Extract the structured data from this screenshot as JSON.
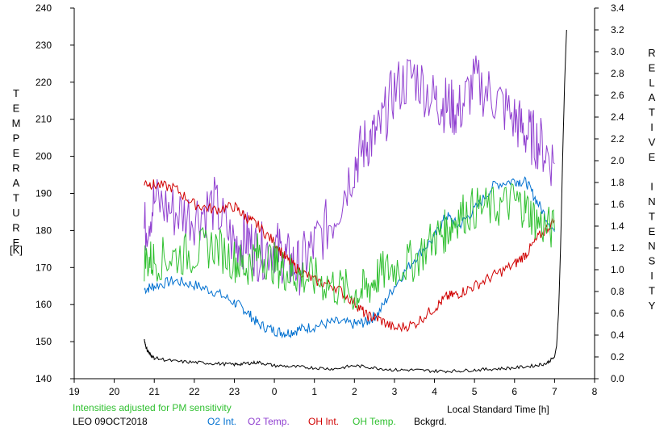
{
  "chart_data": {
    "type": "line",
    "title": "",
    "xlabel": "Local Standard Time [h]",
    "ylabel_left": "TEMPERATURE",
    "ylabel_left_unit": "[K]",
    "ylabel_right": "RELATIVE INTENSITY",
    "xlim": [
      19,
      32
    ],
    "x_tick_values": [
      19,
      20,
      21,
      22,
      23,
      24,
      25,
      26,
      27,
      28,
      29,
      30,
      31,
      32
    ],
    "x_tick_labels": [
      "19",
      "20",
      "21",
      "22",
      "23",
      "0",
      "1",
      "2",
      "3",
      "4",
      "5",
      "6",
      "7",
      "8"
    ],
    "ylim_left": [
      140,
      240
    ],
    "y_left_ticks": [
      "140",
      "150",
      "160",
      "170",
      "180",
      "190",
      "200",
      "210",
      "220",
      "230",
      "240"
    ],
    "ylim_right": [
      0.0,
      3.4
    ],
    "y_right_ticks": [
      "0.0",
      "0.2",
      "0.4",
      "0.6",
      "0.8",
      "1.0",
      "1.2",
      "1.4",
      "1.6",
      "1.8",
      "2.0",
      "2.2",
      "2.4",
      "2.6",
      "2.8",
      "3.0",
      "3.2",
      "3.4"
    ],
    "note": "Intensities adjusted for PM sensitivity",
    "site_date": "LEO 09OCT2018",
    "legend_placement": "bottom",
    "grid": false,
    "series": [
      {
        "name": "O2 Int.",
        "color": "#0070d0",
        "axis": "right",
        "x": [
          20.75,
          21.0,
          21.5,
          22.0,
          22.5,
          23.0,
          23.3,
          23.6,
          24.0,
          24.3,
          24.6,
          25.0,
          25.5,
          26.0,
          26.3,
          26.6,
          27.0,
          27.5,
          28.0,
          28.3,
          28.6,
          29.0,
          29.5,
          30.0,
          30.3,
          30.6,
          31.0
        ],
        "values": [
          0.82,
          0.85,
          0.9,
          0.86,
          0.8,
          0.7,
          0.62,
          0.5,
          0.44,
          0.42,
          0.45,
          0.48,
          0.52,
          0.5,
          0.52,
          0.6,
          0.85,
          1.1,
          1.3,
          1.5,
          1.4,
          1.55,
          1.78,
          1.82,
          1.8,
          1.6,
          1.35
        ]
      },
      {
        "name": "O2 Temp.",
        "color": "#9040d0",
        "axis": "left",
        "x": [
          20.75,
          21.0,
          21.5,
          22.0,
          22.5,
          23.0,
          23.3,
          23.6,
          24.0,
          24.3,
          24.6,
          25.0,
          25.5,
          26.0,
          26.3,
          26.6,
          27.0,
          27.5,
          28.0,
          28.3,
          28.6,
          29.0,
          29.5,
          30.0,
          30.3,
          30.6,
          31.0
        ],
        "values": [
          180,
          188,
          185,
          184,
          187,
          176,
          178,
          174,
          176,
          172,
          170,
          176,
          184,
          198,
          204,
          206,
          218,
          222,
          215,
          214,
          212,
          220,
          216,
          210,
          206,
          204,
          198
        ]
      },
      {
        "name": "OH Int.",
        "color": "#d00000",
        "axis": "right",
        "x": [
          20.75,
          21.0,
          21.5,
          22.0,
          22.5,
          23.0,
          23.3,
          23.6,
          24.0,
          24.3,
          24.6,
          25.0,
          25.5,
          26.0,
          26.3,
          26.6,
          27.0,
          27.5,
          28.0,
          28.3,
          28.6,
          29.0,
          29.5,
          30.0,
          30.3,
          30.6,
          31.0
        ],
        "values": [
          1.8,
          1.78,
          1.75,
          1.6,
          1.55,
          1.58,
          1.48,
          1.4,
          1.25,
          1.1,
          1.0,
          0.9,
          0.85,
          0.7,
          0.58,
          0.55,
          0.46,
          0.5,
          0.65,
          0.75,
          0.78,
          0.85,
          0.95,
          1.05,
          1.15,
          1.3,
          1.45
        ]
      },
      {
        "name": "OH Temp.",
        "color": "#30c030",
        "axis": "left",
        "x": [
          20.75,
          21.0,
          21.5,
          22.0,
          22.5,
          23.0,
          23.3,
          23.6,
          24.0,
          24.3,
          24.6,
          25.0,
          25.5,
          26.0,
          26.3,
          26.6,
          27.0,
          27.5,
          28.0,
          28.3,
          28.6,
          29.0,
          29.5,
          30.0,
          30.3,
          30.6,
          31.0
        ],
        "values": [
          172,
          172,
          173,
          174,
          176,
          172,
          170,
          174,
          171,
          169,
          168,
          167,
          165,
          163,
          164,
          168,
          170,
          172,
          178,
          180,
          184,
          186,
          186,
          188,
          186,
          182,
          180
        ]
      },
      {
        "name": "Bckgrd.",
        "color": "#000000",
        "axis": "right",
        "x": [
          20.75,
          20.8,
          20.9,
          21.0,
          21.5,
          22.0,
          22.5,
          23.0,
          23.3,
          23.6,
          24.0,
          24.5,
          25.0,
          25.5,
          26.0,
          26.5,
          27.0,
          27.5,
          28.0,
          28.5,
          29.0,
          29.5,
          30.0,
          30.5,
          30.8,
          31.0,
          31.05,
          31.1,
          31.15,
          31.2,
          31.25,
          31.3
        ],
        "values": [
          0.36,
          0.28,
          0.22,
          0.19,
          0.16,
          0.15,
          0.14,
          0.13,
          0.14,
          0.15,
          0.12,
          0.11,
          0.1,
          0.09,
          0.12,
          0.1,
          0.08,
          0.08,
          0.07,
          0.07,
          0.08,
          0.09,
          0.1,
          0.12,
          0.14,
          0.2,
          0.3,
          0.6,
          1.2,
          2.0,
          2.7,
          3.2
        ]
      }
    ]
  }
}
